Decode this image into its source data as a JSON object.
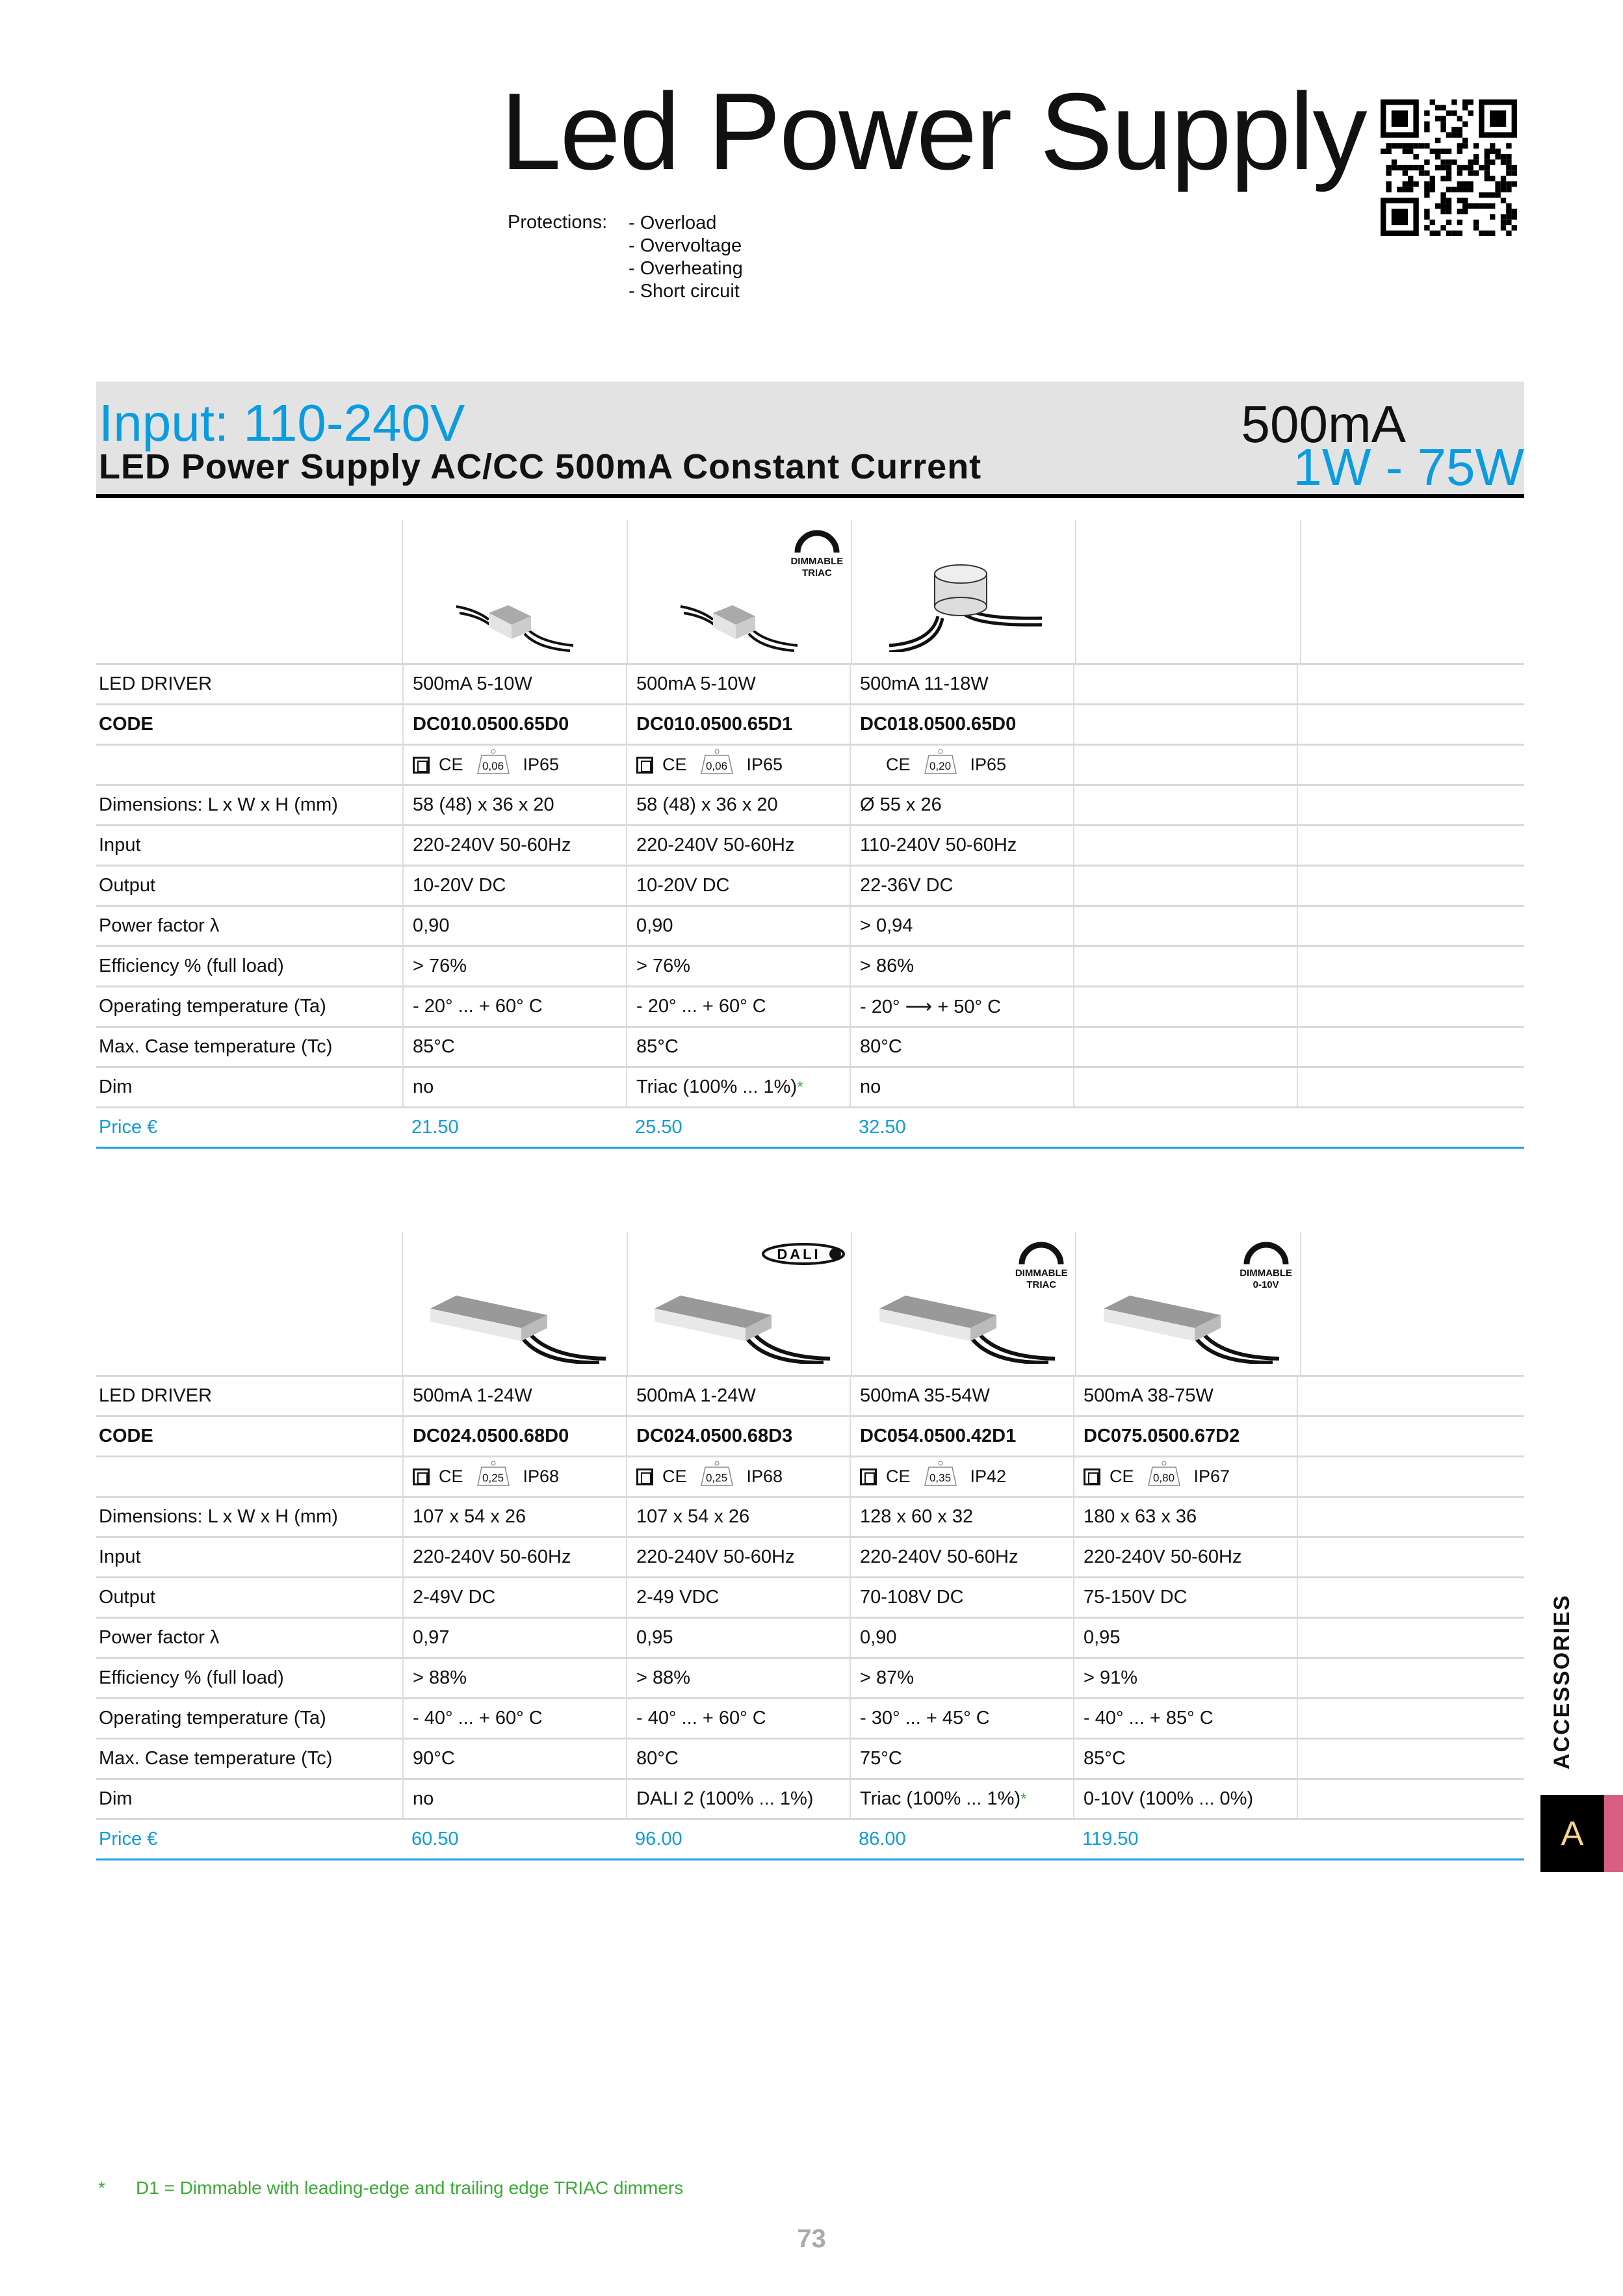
{
  "title": "Led Power Supply",
  "protections": {
    "label": "Protections:",
    "items": [
      "- Overload",
      "- Overvoltage",
      "- Overheating",
      "- Short circuit"
    ]
  },
  "banner": {
    "input": "Input: 110-240V",
    "subtitle": "LED Power Supply AC/CC 500mA Constant Current",
    "current": "500mA",
    "power_range": "1W - 75W"
  },
  "colors": {
    "accent": "#0a9ce0",
    "note_green": "#3aaa35",
    "tab_black": "#000000",
    "tab_pink": "#d95f82",
    "tab_letter": "#f5d58a"
  },
  "row_labels": {
    "driver": "LED DRIVER",
    "code": "CODE",
    "cert": "",
    "dimensions": "Dimensions: L x W x H (mm)",
    "input": "Input",
    "output": "Output",
    "power_factor": "Power factor λ",
    "efficiency": "Efficiency % (full load)",
    "op_temp": "Operating temperature (Ta)",
    "case_temp": "Max. Case temperature (Tc)",
    "dim": "Dim",
    "price": "Price €"
  },
  "cert_text": {
    "ce": "CE"
  },
  "badges": {
    "dimmable-triac": [
      "DIMMABLE",
      "TRIAC"
    ],
    "dimmable-0-10v": [
      "DIMMABLE",
      "0-10V"
    ],
    "dali": [
      "DALI"
    ]
  },
  "tables": [
    {
      "products": [
        {
          "image": "box-small",
          "badge": null,
          "driver": "500mA  5-10W",
          "code": "DC010.0500.65D0",
          "cert": {
            "square": true,
            "weight": "0,06",
            "ip": "IP65"
          },
          "dimensions": "58 (48) x 36 x 20",
          "input": "220-240V  50-60Hz",
          "output": "10-20V DC",
          "power_factor": "0,90",
          "efficiency": "> 76%",
          "op_temp": "- 20° ... + 60° C",
          "case_temp": "85°C",
          "dim": "no",
          "dim_note": false,
          "price": "21.50"
        },
        {
          "image": "box-small",
          "badge": "dimmable-triac",
          "driver": "500mA  5-10W",
          "code": "DC010.0500.65D1",
          "cert": {
            "square": true,
            "weight": "0,06",
            "ip": "IP65"
          },
          "dimensions": "58 (48) x 36 x 20",
          "input": "220-240V  50-60Hz",
          "output": "10-20V DC",
          "power_factor": "0,90",
          "efficiency": "> 76%",
          "op_temp": "- 20° ... + 60° C",
          "case_temp": "85°C",
          "dim": "Triac (100% ... 1%)",
          "dim_note": true,
          "price": "25.50"
        },
        {
          "image": "puck",
          "badge": null,
          "driver": "500mA  11-18W",
          "code": "DC018.0500.65D0",
          "cert": {
            "square": false,
            "weight": "0,20",
            "ip": "IP65"
          },
          "dimensions": "Ø 55 x 26",
          "input": "110-240V  50-60Hz",
          "output": "22-36V DC",
          "power_factor": "> 0,94",
          "efficiency": "> 86%",
          "op_temp": "- 20° ⟶ + 50° C",
          "case_temp": "80°C",
          "dim": "no",
          "dim_note": false,
          "price": "32.50"
        }
      ]
    },
    {
      "products": [
        {
          "image": "box-long",
          "badge": null,
          "driver": "500mA  1-24W",
          "code": "DC024.0500.68D0",
          "cert": {
            "square": true,
            "weight": "0,25",
            "ip": "IP68"
          },
          "dimensions": "107 x 54 x 26",
          "input": "220-240V  50-60Hz",
          "output": "2-49V DC",
          "power_factor": "0,97",
          "efficiency": "> 88%",
          "op_temp": "- 40° ... + 60° C",
          "case_temp": "90°C",
          "dim": "no",
          "dim_note": false,
          "price": "60.50"
        },
        {
          "image": "box-long",
          "badge": "dali",
          "driver": "500mA  1-24W",
          "code": "DC024.0500.68D3",
          "cert": {
            "square": true,
            "weight": "0,25",
            "ip": "IP68"
          },
          "dimensions": "107 x 54 x 26",
          "input": "220-240V  50-60Hz",
          "output": "2-49 VDC",
          "power_factor": "0,95",
          "efficiency": "> 88%",
          "op_temp": "- 40° ... + 60° C",
          "case_temp": "80°C",
          "dim": "DALI 2 (100% ... 1%)",
          "dim_note": false,
          "price": "96.00"
        },
        {
          "image": "box-long",
          "badge": "dimmable-triac",
          "driver": "500mA  35-54W",
          "code": "DC054.0500.42D1",
          "cert": {
            "square": true,
            "weight": "0,35",
            "ip": "IP42"
          },
          "dimensions": "128 x 60 x 32",
          "input": "220-240V  50-60Hz",
          "output": "70-108V DC",
          "power_factor": "0,90",
          "efficiency": "> 87%",
          "op_temp": "- 30° ... + 45° C",
          "case_temp": "75°C",
          "dim": "Triac (100% ... 1%)",
          "dim_note": true,
          "price": "86.00"
        },
        {
          "image": "box-long",
          "badge": "dimmable-0-10v",
          "driver": "500mA  38-75W",
          "code": "DC075.0500.67D2",
          "cert": {
            "square": true,
            "weight": "0,80",
            "ip": "IP67"
          },
          "dimensions": "180 x 63 x 36",
          "input": "220-240V  50-60Hz",
          "output": "75-150V DC",
          "power_factor": "0,95",
          "efficiency": "> 91%",
          "op_temp": "- 40° ... + 85° C",
          "case_temp": "85°C",
          "dim": "0-10V (100% ... 0%)",
          "dim_note": false,
          "price": "119.50"
        }
      ]
    }
  ],
  "footnote": {
    "marker": "*",
    "text": "D1 = Dimmable with leading-edge and trailing edge TRIAC dimmers"
  },
  "side_tab": {
    "section": "ACCESSORIES",
    "letter": "A"
  },
  "page_number": "73"
}
